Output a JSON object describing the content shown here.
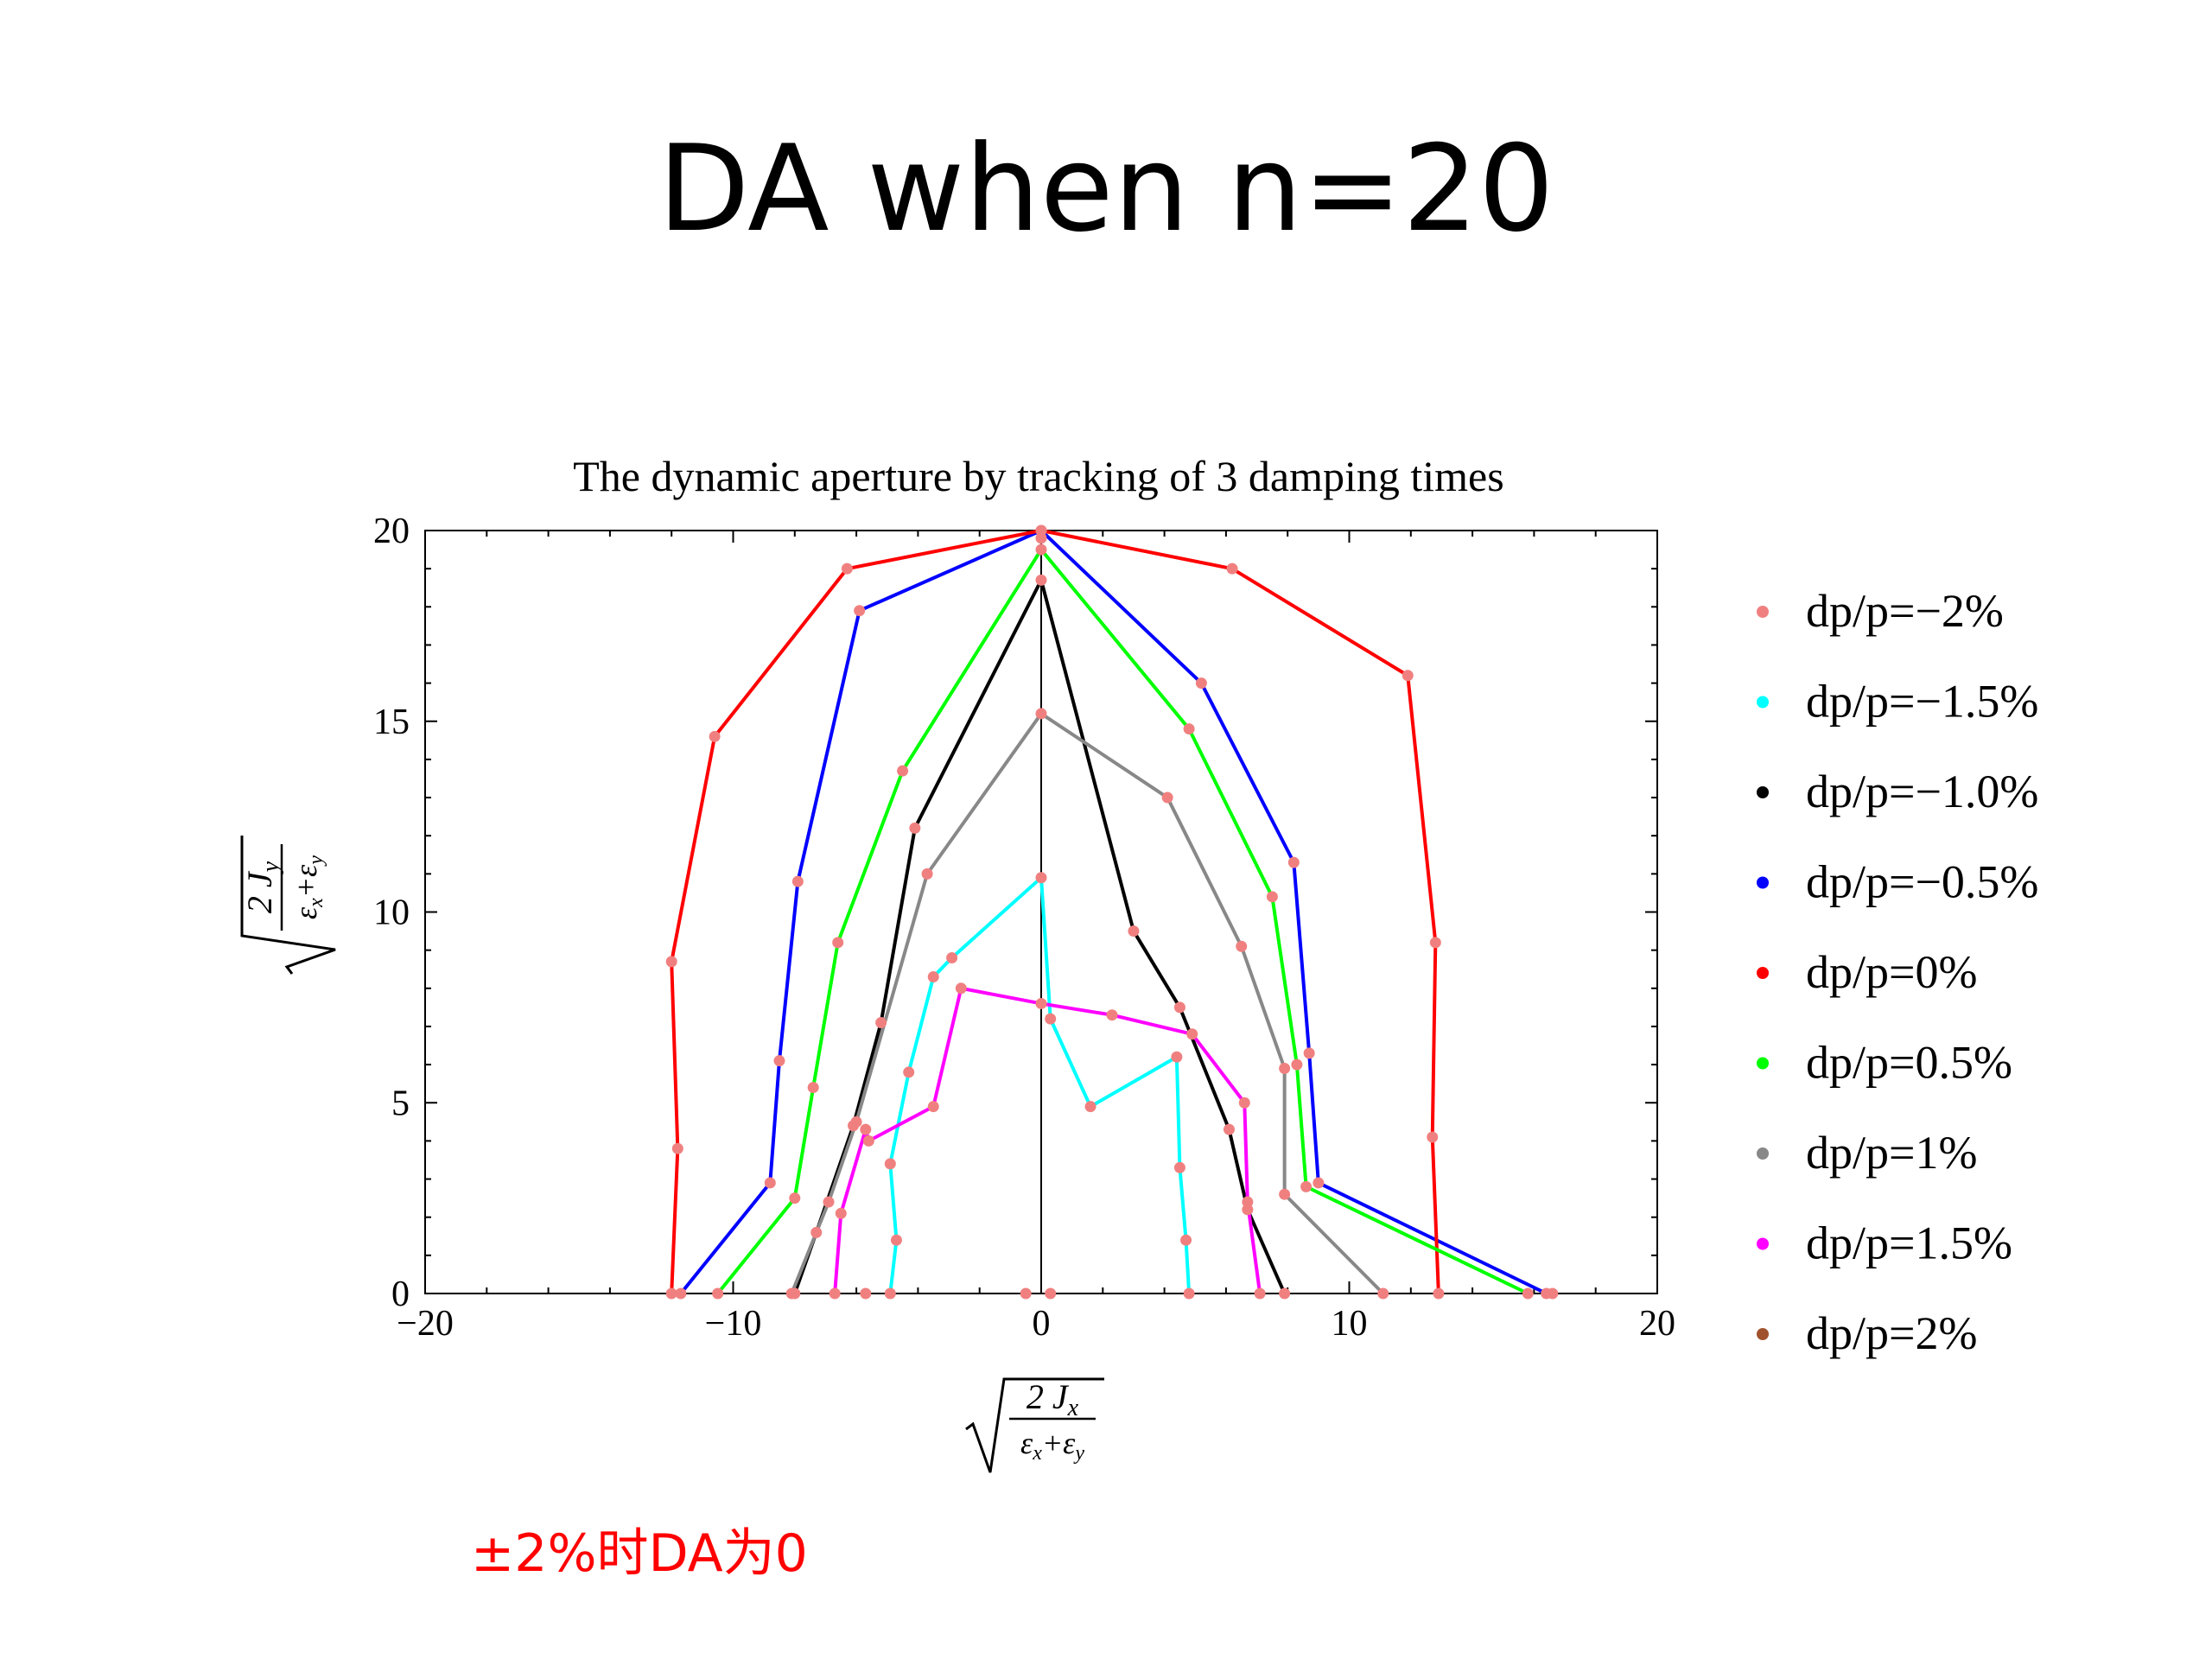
{
  "slide": {
    "title": "DA when n=20",
    "note": "±2%时DA为0"
  },
  "chart_data": {
    "type": "line",
    "title": "The dynamic aperture by tracking of 3 damping times",
    "xlabel": {
      "num": "2 J",
      "num_sub": "x",
      "den_a": "ε",
      "den_a_sub": "x",
      "plus": "+",
      "den_b": "ε",
      "den_b_sub": "y"
    },
    "ylabel": {
      "num": "2 J",
      "num_sub": "y",
      "den_a": "ε",
      "den_a_sub": "x",
      "plus": "+",
      "den_b": "ε",
      "den_b_sub": "y"
    },
    "xlim": [
      -20,
      20
    ],
    "ylim": [
      0,
      20
    ],
    "x_ticks": [
      -20,
      -10,
      0,
      10,
      20
    ],
    "x_tick_labels": [
      "−20",
      "−10",
      "0",
      "10",
      "20"
    ],
    "y_ticks": [
      0,
      5,
      10,
      15,
      20
    ],
    "y_tick_labels": [
      "0",
      "5",
      "10",
      "15",
      "20"
    ],
    "grid": false,
    "legend_position": "right",
    "marker_color": "#f08080",
    "series": [
      {
        "name": "dp/p=−2%",
        "color": "#f08080",
        "points": []
      },
      {
        "name": "dp/p=−1.5%",
        "color": "#00ffff",
        "points": [
          [
            -4.9,
            0
          ],
          [
            -4.7,
            1.4
          ],
          [
            -4.9,
            3.4
          ],
          [
            -4.3,
            5.8
          ],
          [
            -3.5,
            8.3
          ],
          [
            -2.9,
            8.8
          ],
          [
            0,
            10.9
          ],
          [
            0.3,
            7.2
          ],
          [
            1.6,
            4.9
          ],
          [
            4.4,
            6.2
          ],
          [
            4.5,
            3.3
          ],
          [
            4.7,
            1.4
          ],
          [
            4.8,
            0
          ]
        ]
      },
      {
        "name": "dp/p=−1.0%",
        "color": "#000000",
        "points": [
          [
            -8.0,
            0
          ],
          [
            -7.3,
            1.6
          ],
          [
            -6.1,
            4.4
          ],
          [
            -5.2,
            7.1
          ],
          [
            -4.1,
            12.2
          ],
          [
            0,
            18.7
          ],
          [
            3.0,
            9.5
          ],
          [
            4.5,
            7.5
          ],
          [
            6.1,
            4.3
          ],
          [
            6.7,
            2.2
          ],
          [
            7.9,
            0
          ]
        ]
      },
      {
        "name": "dp/p=−0.5%",
        "color": "#0000ff",
        "points": [
          [
            -11.7,
            0
          ],
          [
            -8.8,
            2.9
          ],
          [
            -8.5,
            6.1
          ],
          [
            -7.9,
            10.8
          ],
          [
            -5.9,
            17.9
          ],
          [
            0,
            20.0
          ],
          [
            5.2,
            16.0
          ],
          [
            8.2,
            11.3
          ],
          [
            8.7,
            6.3
          ],
          [
            9.0,
            2.9
          ],
          [
            16.4,
            0
          ]
        ]
      },
      {
        "name": "dp/p=0%",
        "color": "#ff0000",
        "points": [
          [
            -12.0,
            0
          ],
          [
            -11.8,
            3.8
          ],
          [
            -12.0,
            8.7
          ],
          [
            -10.6,
            14.6
          ],
          [
            -6.3,
            19.0
          ],
          [
            0,
            20.0
          ],
          [
            6.2,
            19.0
          ],
          [
            11.9,
            16.2
          ],
          [
            12.8,
            9.2
          ],
          [
            12.7,
            4.1
          ],
          [
            12.9,
            0
          ]
        ]
      },
      {
        "name": "dp/p=0.5%",
        "color": "#00ff00",
        "points": [
          [
            -10.5,
            0
          ],
          [
            -8.0,
            2.5
          ],
          [
            -7.4,
            5.4
          ],
          [
            -6.6,
            9.2
          ],
          [
            -4.5,
            13.7
          ],
          [
            0,
            19.5
          ],
          [
            4.8,
            14.8
          ],
          [
            7.5,
            10.4
          ],
          [
            8.3,
            6.0
          ],
          [
            8.6,
            2.8
          ],
          [
            15.8,
            0
          ]
        ]
      },
      {
        "name": "dp/p=1%",
        "color": "#888888",
        "points": [
          [
            -8.1,
            0
          ],
          [
            -6.9,
            2.4
          ],
          [
            -6.0,
            4.5
          ],
          [
            -3.7,
            11.0
          ],
          [
            0,
            15.2
          ],
          [
            4.1,
            13.0
          ],
          [
            6.5,
            9.1
          ],
          [
            7.9,
            5.9
          ],
          [
            7.9,
            2.6
          ],
          [
            11.1,
            0
          ]
        ]
      },
      {
        "name": "dp/p=1.5%",
        "color": "#ff00ff",
        "points": [
          [
            -6.7,
            0
          ],
          [
            -6.5,
            2.1
          ],
          [
            -5.7,
            4.3
          ],
          [
            -5.6,
            4.0
          ],
          [
            -3.5,
            4.9
          ],
          [
            -2.6,
            8.0
          ],
          [
            0,
            7.6
          ],
          [
            2.3,
            7.3
          ],
          [
            4.9,
            6.8
          ],
          [
            6.6,
            5.0
          ],
          [
            6.7,
            2.4
          ],
          [
            7.1,
            0
          ]
        ]
      },
      {
        "name": "dp/p=2%",
        "color": "#a0522d",
        "points": []
      }
    ],
    "extra_markers": [
      [
        -5.7,
        0
      ],
      [
        0,
        19.8
      ],
      [
        -0.5,
        0
      ],
      [
        0.3,
        0
      ],
      [
        16.6,
        0
      ]
    ]
  }
}
